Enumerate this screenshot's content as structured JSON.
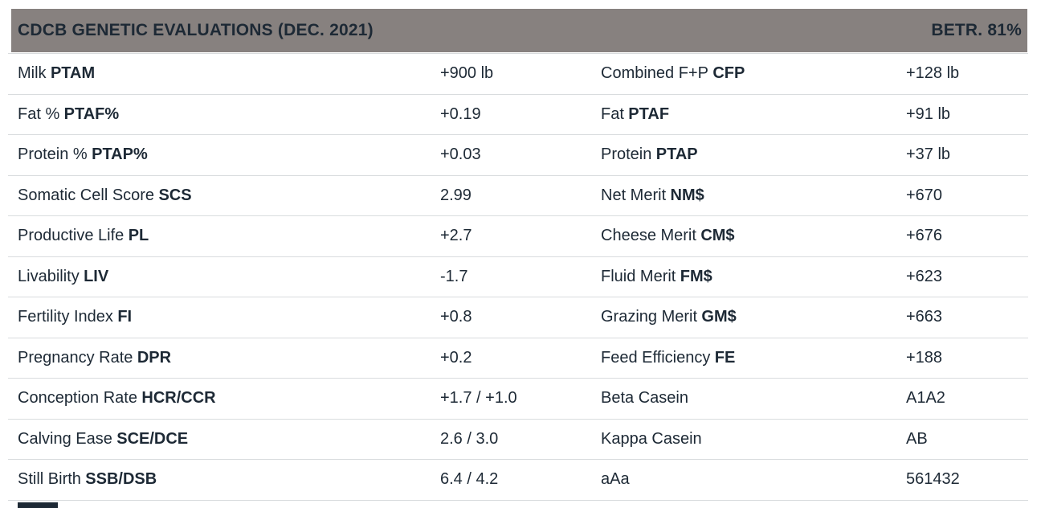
{
  "header": {
    "title": "CDCB GENETIC EVALUATIONS (DEC. 2021)",
    "right_badge": "BETR. 81%"
  },
  "colors": {
    "header_bg": "#87817f",
    "text": "#1d2935",
    "divider": "#d9dcde",
    "background": "#ffffff"
  },
  "table": {
    "rows": [
      {
        "l_label": "Milk",
        "l_abbr": "PTAM",
        "l_value": "+900 lb",
        "r_label": "Combined F+P",
        "r_abbr": "CFP",
        "r_value": "+128 lb"
      },
      {
        "l_label": "Fat %",
        "l_abbr": "PTAF%",
        "l_value": "+0.19",
        "r_label": "Fat",
        "r_abbr": "PTAF",
        "r_value": "+91 lb"
      },
      {
        "l_label": "Protein %",
        "l_abbr": "PTAP%",
        "l_value": "+0.03",
        "r_label": "Protein",
        "r_abbr": "PTAP",
        "r_value": "+37 lb"
      },
      {
        "l_label": "Somatic Cell Score",
        "l_abbr": "SCS",
        "l_value": "2.99",
        "r_label": "Net Merit",
        "r_abbr": "NM$",
        "r_value": "+670"
      },
      {
        "l_label": "Productive Life",
        "l_abbr": "PL",
        "l_value": "+2.7",
        "r_label": "Cheese Merit",
        "r_abbr": "CM$",
        "r_value": "+676"
      },
      {
        "l_label": "Livability",
        "l_abbr": "LIV",
        "l_value": "-1.7",
        "r_label": "Fluid Merit",
        "r_abbr": "FM$",
        "r_value": "+623"
      },
      {
        "l_label": "Fertility Index",
        "l_abbr": "FI",
        "l_value": "+0.8",
        "r_label": "Grazing Merit",
        "r_abbr": "GM$",
        "r_value": "+663"
      },
      {
        "l_label": "Pregnancy Rate",
        "l_abbr": "DPR",
        "l_value": "+0.2",
        "r_label": "Feed Efficiency",
        "r_abbr": "FE",
        "r_value": "+188"
      },
      {
        "l_label": "Conception Rate",
        "l_abbr": "HCR/CCR",
        "l_value": "+1.7 / +1.0",
        "r_label": "Beta Casein",
        "r_abbr": "",
        "r_value": "A1A2"
      },
      {
        "l_label": "Calving Ease",
        "l_abbr": "SCE/DCE",
        "l_value": "2.6 / 3.0",
        "r_label": "Kappa Casein",
        "r_abbr": "",
        "r_value": "AB"
      },
      {
        "l_label": "Still Birth",
        "l_abbr": "SSB/DSB",
        "l_value": "6.4 / 4.2",
        "r_label": "aAa",
        "r_abbr": "",
        "r_value": "561432"
      }
    ]
  }
}
